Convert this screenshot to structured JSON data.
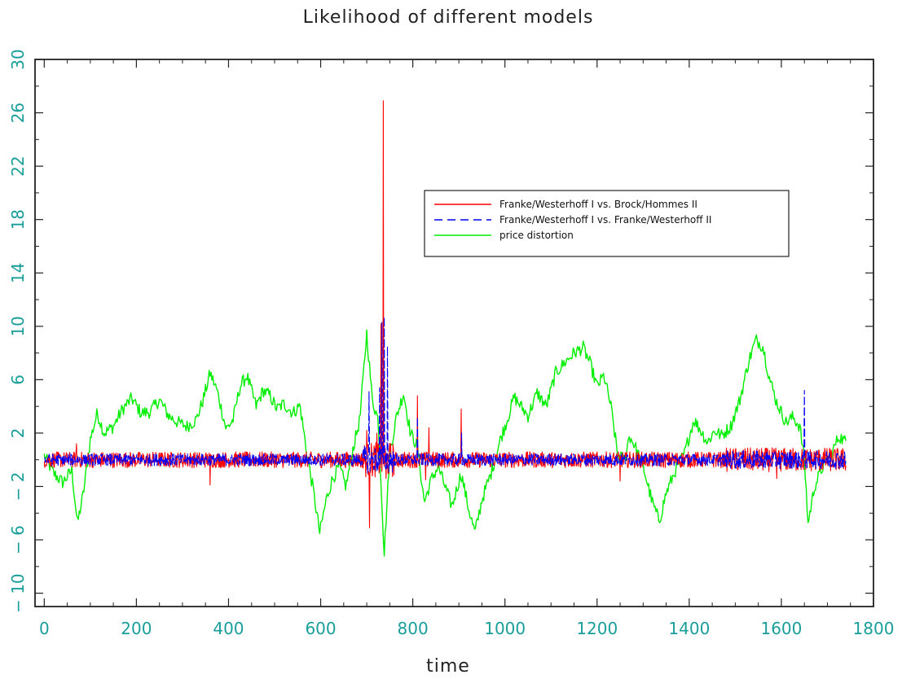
{
  "chart_data": {
    "type": "line",
    "title": "Likelihood of different models",
    "xlabel": "time",
    "ylabel": "",
    "xlim": [
      -20,
      1800
    ],
    "ylim": [
      -11,
      30
    ],
    "xticks": [
      0,
      200,
      400,
      600,
      800,
      1000,
      1200,
      1400,
      1600,
      1800
    ],
    "yticks": [
      -10,
      -6,
      -2,
      2,
      6,
      10,
      14,
      18,
      22,
      26,
      30
    ],
    "tick_label_color": "#1a9e9a",
    "legend_position": "upper-right",
    "grid": false,
    "series": [
      {
        "name": "Franke/Westerhoff I vs. Brock/Hommes II",
        "color": "#ff0000",
        "style": "solid",
        "baseline": 0,
        "noise_amplitude": 0.6,
        "x_range": [
          0,
          1740
        ],
        "spikes": [
          {
            "x": 70,
            "y": 1.2
          },
          {
            "x": 360,
            "y": -1.9
          },
          {
            "x": 700,
            "y": 2.2
          },
          {
            "x": 706,
            "y": -5.1
          },
          {
            "x": 722,
            "y": 2.0
          },
          {
            "x": 731,
            "y": 10.2
          },
          {
            "x": 736,
            "y": 26.9
          },
          {
            "x": 742,
            "y": -1.4
          },
          {
            "x": 810,
            "y": 4.8
          },
          {
            "x": 828,
            "y": -1.5
          },
          {
            "x": 835,
            "y": 2.4
          },
          {
            "x": 905,
            "y": 3.8
          },
          {
            "x": 1250,
            "y": -1.6
          },
          {
            "x": 1590,
            "y": -1.4
          }
        ]
      },
      {
        "name": "Franke/Westerhoff I vs. Franke/Westerhoff II",
        "color": "#0000ff",
        "style": "dashed",
        "baseline": 0,
        "noise_amplitude": 0.45,
        "x_range": [
          0,
          1740
        ],
        "spikes": [
          {
            "x": 705,
            "y": 5.1
          },
          {
            "x": 728,
            "y": 5.4
          },
          {
            "x": 733,
            "y": 10.3
          },
          {
            "x": 738,
            "y": 10.7
          },
          {
            "x": 745,
            "y": 8.5
          },
          {
            "x": 810,
            "y": 3.2
          },
          {
            "x": 906,
            "y": 2.0
          },
          {
            "x": 1650,
            "y": 5.2
          }
        ]
      },
      {
        "name": "price distortion",
        "color": "#00ee00",
        "style": "solid",
        "noise_amplitude": 0.5,
        "x_range": [
          0,
          1740
        ],
        "anchors": [
          [
            0,
            0.3
          ],
          [
            20,
            -1.0
          ],
          [
            40,
            -1.7
          ],
          [
            60,
            -0.8
          ],
          [
            72,
            -4.8
          ],
          [
            85,
            -2.5
          ],
          [
            100,
            1.5
          ],
          [
            115,
            3.5
          ],
          [
            130,
            2.0
          ],
          [
            150,
            2.5
          ],
          [
            170,
            3.8
          ],
          [
            190,
            4.6
          ],
          [
            210,
            3.5
          ],
          [
            230,
            3.6
          ],
          [
            250,
            4.5
          ],
          [
            270,
            3.3
          ],
          [
            290,
            2.8
          ],
          [
            310,
            2.5
          ],
          [
            330,
            3.0
          ],
          [
            345,
            4.5
          ],
          [
            360,
            6.5
          ],
          [
            375,
            5.2
          ],
          [
            395,
            2.3
          ],
          [
            410,
            3.0
          ],
          [
            425,
            5.5
          ],
          [
            440,
            6.3
          ],
          [
            460,
            4.0
          ],
          [
            475,
            5.2
          ],
          [
            490,
            4.8
          ],
          [
            505,
            3.8
          ],
          [
            520,
            4.2
          ],
          [
            540,
            3.5
          ],
          [
            555,
            4.1
          ],
          [
            570,
            0.5
          ],
          [
            585,
            -2.5
          ],
          [
            598,
            -5.5
          ],
          [
            612,
            -3.0
          ],
          [
            625,
            -1.5
          ],
          [
            640,
            -0.5
          ],
          [
            655,
            -2.0
          ],
          [
            670,
            0.8
          ],
          [
            685,
            3.0
          ],
          [
            700,
            9.5
          ],
          [
            712,
            4.5
          ],
          [
            725,
            3.0
          ],
          [
            738,
            -7.0
          ],
          [
            750,
            0.5
          ],
          [
            765,
            3.3
          ],
          [
            780,
            5.0
          ],
          [
            795,
            2.0
          ],
          [
            810,
            1.0
          ],
          [
            825,
            -3.2
          ],
          [
            840,
            -1.5
          ],
          [
            855,
            -0.5
          ],
          [
            870,
            -2.0
          ],
          [
            885,
            -3.5
          ],
          [
            905,
            -1.0
          ],
          [
            920,
            -3.5
          ],
          [
            935,
            -5.5
          ],
          [
            950,
            -3.0
          ],
          [
            970,
            -1.0
          ],
          [
            990,
            1.5
          ],
          [
            1005,
            3.0
          ],
          [
            1020,
            4.7
          ],
          [
            1035,
            4.0
          ],
          [
            1050,
            3.3
          ],
          [
            1070,
            5.0
          ],
          [
            1090,
            4.0
          ],
          [
            1110,
            6.5
          ],
          [
            1130,
            7.3
          ],
          [
            1150,
            8.0
          ],
          [
            1170,
            8.4
          ],
          [
            1185,
            7.2
          ],
          [
            1200,
            5.5
          ],
          [
            1215,
            6.3
          ],
          [
            1230,
            4.0
          ],
          [
            1245,
            0.3
          ],
          [
            1260,
            0.0
          ],
          [
            1270,
            1.8
          ],
          [
            1280,
            1.2
          ],
          [
            1300,
            -0.5
          ],
          [
            1320,
            -3.2
          ],
          [
            1335,
            -4.6
          ],
          [
            1350,
            -2.5
          ],
          [
            1370,
            -0.8
          ],
          [
            1390,
            0.5
          ],
          [
            1410,
            3.0
          ],
          [
            1425,
            2.2
          ],
          [
            1440,
            1.3
          ],
          [
            1455,
            2.2
          ],
          [
            1470,
            1.8
          ],
          [
            1490,
            2.5
          ],
          [
            1510,
            4.5
          ],
          [
            1530,
            7.5
          ],
          [
            1545,
            9.0
          ],
          [
            1560,
            8.5
          ],
          [
            1575,
            6.0
          ],
          [
            1590,
            4.3
          ],
          [
            1610,
            2.8
          ],
          [
            1625,
            3.2
          ],
          [
            1640,
            2.5
          ],
          [
            1650,
            0.0
          ],
          [
            1658,
            -4.8
          ],
          [
            1672,
            -2.0
          ],
          [
            1690,
            -0.5
          ],
          [
            1710,
            0.5
          ],
          [
            1725,
            1.8
          ],
          [
            1740,
            1.3
          ]
        ]
      }
    ]
  }
}
